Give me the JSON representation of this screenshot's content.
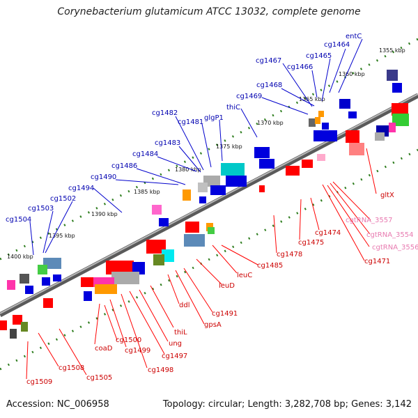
{
  "title": "Corynebacterium glutamicum ATCC 13032, complete genome",
  "footer": {
    "accession": "Accession: NC_006958",
    "summary": "Topology: circular; Length: 3,282,708 bp; Genes: 3,142"
  },
  "kbp_labels": [
    "1355 kbp",
    "1360 kbp",
    "1365 kbp",
    "1370 kbp",
    "1375 kbp",
    "1380 kbp",
    "1385 kbp",
    "1390 kbp",
    "1395 kbp",
    "1400 kbp"
  ],
  "genes_top": [
    "entC",
    "cg1464",
    "cg1465",
    "cg1466",
    "cg1467",
    "cg1468",
    "cg1469",
    "thiC",
    "cg1481",
    "glgP1",
    "cg1482",
    "cg1483",
    "cg1484",
    "cg1486",
    "cg1490",
    "cg1494",
    "cg1502",
    "cg1503",
    "cg1504"
  ],
  "genes_bottom": [
    "gltX",
    "cgtRNA_3557",
    "cgtRNA_3554",
    "cgtRNA_3556",
    "cg1471",
    "cg1474",
    "cg1475",
    "cg1478",
    "cg1485",
    "leuC",
    "leuD",
    "cg1491",
    "gpsA",
    "ddl",
    "thiL",
    "ung",
    "cg1497",
    "cg1498",
    "cg1499",
    "cg1500",
    "coaD",
    "cg1505",
    "cg1508",
    "cg1509"
  ],
  "colors": {
    "forward_label": "#0000b0",
    "reverse_label": "#cc0000",
    "trna_label": "#e87ab0",
    "backbone": "#8a8a8a",
    "tick": "#2e7d1e"
  }
}
